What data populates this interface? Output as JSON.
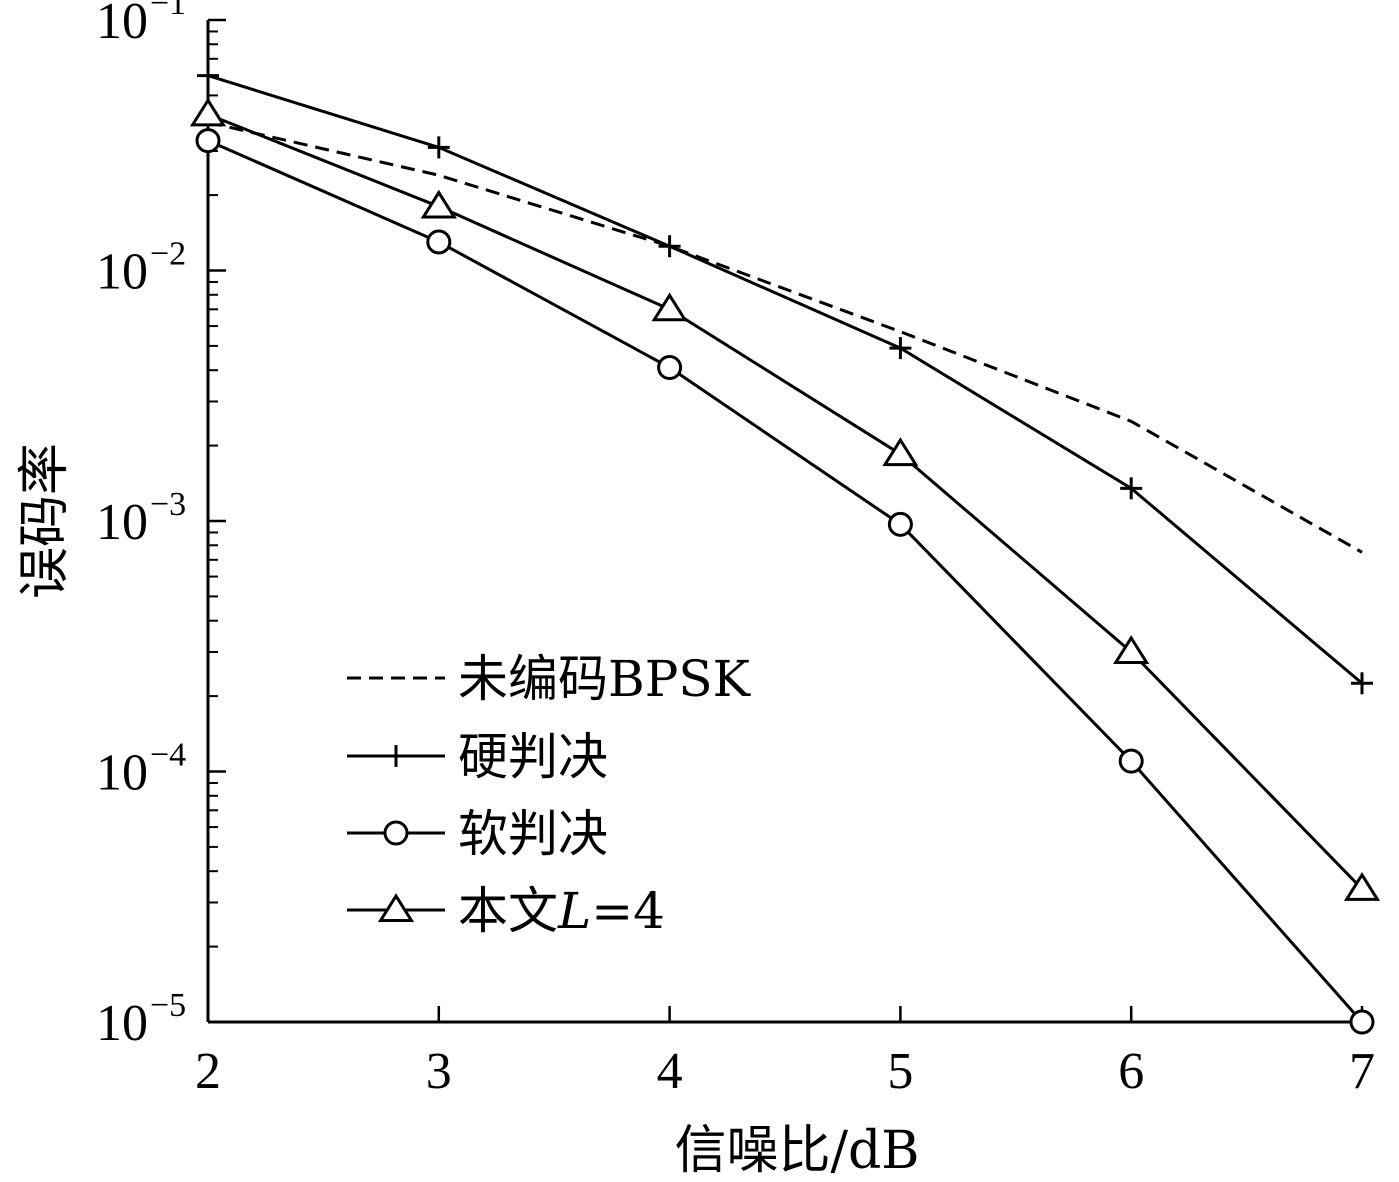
{
  "chart_data": {
    "type": "line",
    "xlabel": "信噪比/dB",
    "ylabel": "误码率",
    "x": [
      2,
      3,
      4,
      5,
      6,
      7
    ],
    "xlim": [
      2,
      7
    ],
    "ylim": [
      1e-05,
      0.1
    ],
    "yscale": "log",
    "x_ticks": [
      "2",
      "3",
      "4",
      "5",
      "6",
      "7"
    ],
    "y_ticks": [
      {
        "value": 0.1,
        "base": "10",
        "exp": "−1"
      },
      {
        "value": 0.01,
        "base": "10",
        "exp": "−2"
      },
      {
        "value": 0.001,
        "base": "10",
        "exp": "−3"
      },
      {
        "value": 0.0001,
        "base": "10",
        "exp": "−4"
      },
      {
        "value": 1e-05,
        "base": "10",
        "exp": "−5"
      }
    ],
    "grid": false,
    "legend_position": "lower-left",
    "series": [
      {
        "name": "未编码BPSK",
        "style": "dashed",
        "marker": "none",
        "values": [
          0.039,
          0.024,
          0.0125,
          0.0057,
          0.0025,
          0.00075
        ]
      },
      {
        "name": "硬判决",
        "style": "solid",
        "marker": "plus",
        "values": [
          0.06,
          0.031,
          0.0125,
          0.0049,
          0.00135,
          0.000225
        ]
      },
      {
        "name": "软判决",
        "style": "solid",
        "marker": "circle",
        "values": [
          0.033,
          0.013,
          0.0041,
          0.00097,
          0.00011,
          1e-05
        ]
      },
      {
        "name": "本文L=4",
        "name_parts": [
          "本文",
          "L",
          "=4"
        ],
        "style": "solid",
        "marker": "triangle",
        "values": [
          0.042,
          0.018,
          0.007,
          0.00185,
          0.0003,
          3.4e-05
        ]
      }
    ]
  }
}
